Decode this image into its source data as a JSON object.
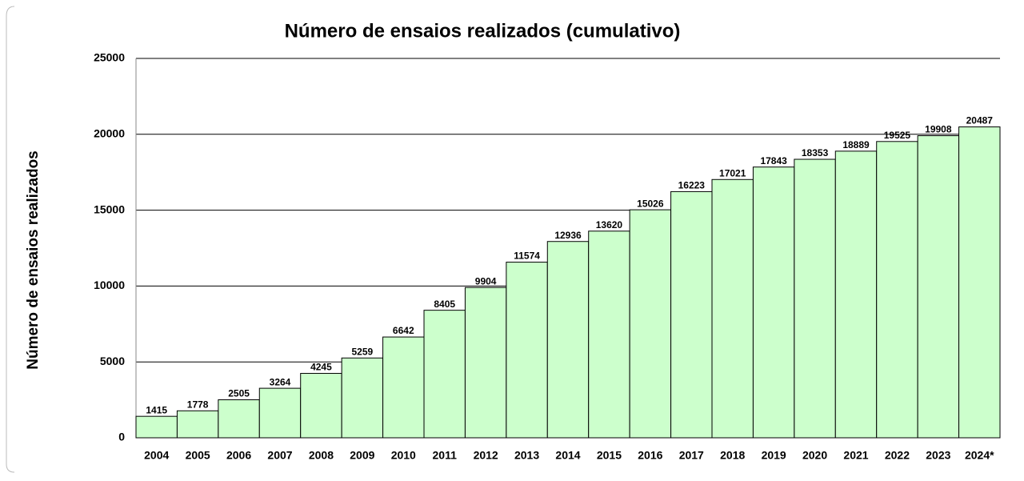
{
  "chart_data": {
    "type": "bar",
    "title": "Número de ensaios realizados (cumulativo)",
    "y_label": "Número de ensaios realizados",
    "categories": [
      "2004",
      "2005",
      "2006",
      "2007",
      "2008",
      "2009",
      "2010",
      "2011",
      "2012",
      "2013",
      "2014",
      "2015",
      "2016",
      "2017",
      "2018",
      "2019",
      "2020",
      "2021",
      "2022",
      "2023",
      "2024*"
    ],
    "values": [
      1415,
      1778,
      2505,
      3264,
      4245,
      5259,
      6642,
      8405,
      9904,
      11574,
      12936,
      13620,
      15026,
      16223,
      17021,
      17843,
      18353,
      18889,
      19525,
      19908,
      20487
    ],
    "color": "#ccffcc",
    "ylim": [
      0,
      25000
    ],
    "yticks": [
      0,
      5000,
      10000,
      15000,
      20000,
      25000
    ],
    "grid": true
  }
}
